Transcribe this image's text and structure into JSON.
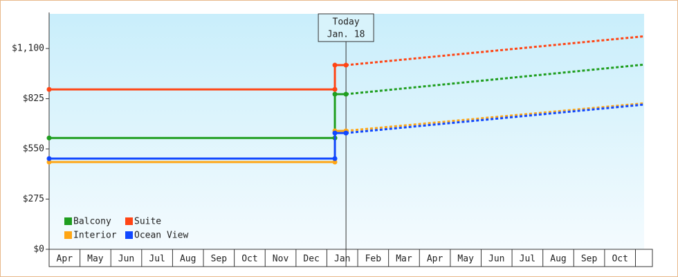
{
  "chart_data": {
    "type": "line",
    "categories": [
      "Apr",
      "May",
      "Jun",
      "Jul",
      "Aug",
      "Sep",
      "Oct",
      "Nov",
      "Dec",
      "Jan",
      "Feb",
      "Mar",
      "Apr",
      "May",
      "Jun",
      "Jul",
      "Aug",
      "Sep",
      "Oct",
      null
    ],
    "x": [
      0,
      9.26,
      9.26,
      9.62,
      19.28
    ],
    "xlim": [
      0,
      19.28
    ],
    "ylim": [
      0,
      1290
    ],
    "yticks": [
      {
        "value": 0,
        "label": "$0"
      },
      {
        "value": 275,
        "label": "$275"
      },
      {
        "value": 550,
        "label": "$550"
      },
      {
        "value": 825,
        "label": "$825"
      },
      {
        "value": 1100,
        "label": "$1,100"
      }
    ],
    "annotation": {
      "x": 9.62,
      "label": [
        "Today",
        "Jan. 18"
      ]
    },
    "series": [
      {
        "name": "Balcony",
        "color": "#1f9e1f",
        "values": [
          610,
          610,
          850,
          850,
          1012
        ]
      },
      {
        "name": "Suite",
        "color": "#ff4515",
        "values": [
          876,
          876,
          1009,
          1009,
          1167
        ]
      },
      {
        "name": "Interior",
        "color": "#ffa615",
        "values": [
          478,
          478,
          649,
          649,
          800
        ]
      },
      {
        "name": "Ocean View",
        "color": "#1047ff",
        "values": [
          497,
          497,
          637,
          637,
          793
        ]
      }
    ]
  }
}
